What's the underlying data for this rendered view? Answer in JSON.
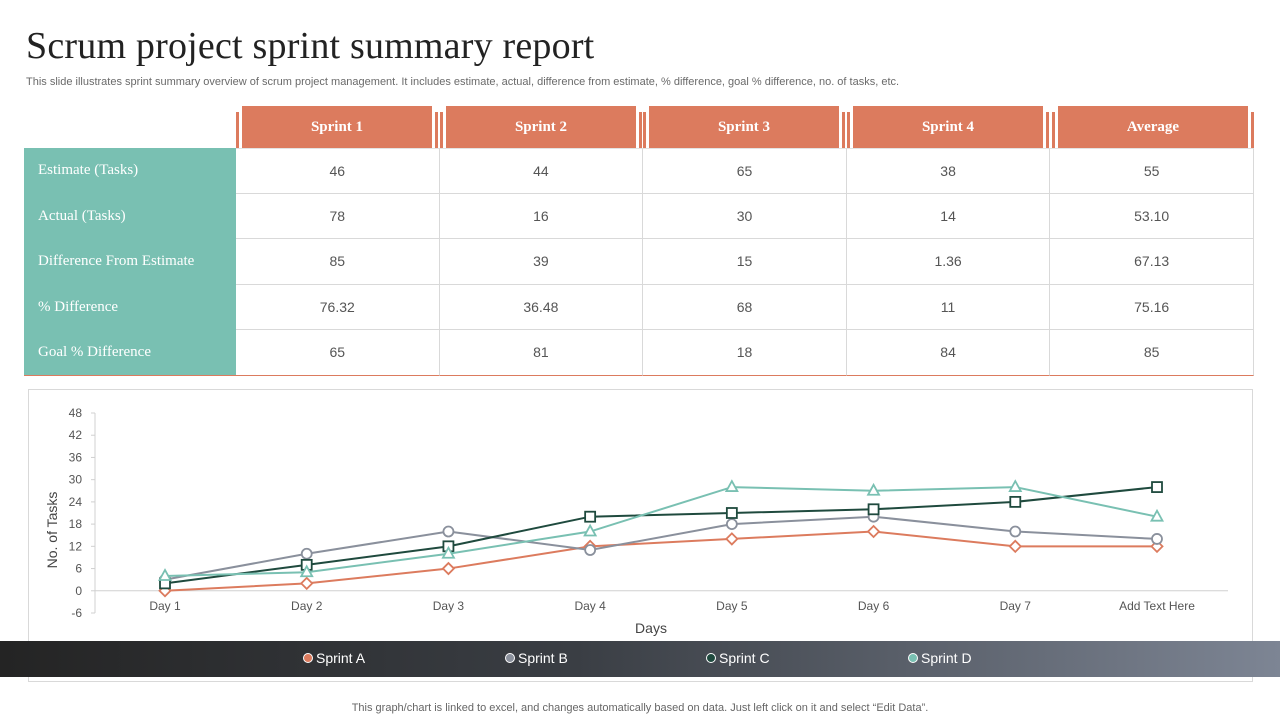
{
  "title": "Scrum project sprint summary report",
  "subtitle": "This slide illustrates sprint summary overview of scrum project management. It includes estimate, actual, difference from estimate, % difference, goal % difference, no. of tasks, etc.",
  "table": {
    "headers": [
      "Sprint 1",
      "Sprint 2",
      "Sprint 3",
      "Sprint 4",
      "Average"
    ],
    "rows": [
      {
        "label": "Estimate (Tasks)",
        "values": [
          "46",
          "44",
          "65",
          "38",
          "55"
        ]
      },
      {
        "label": "Actual (Tasks)",
        "values": [
          "78",
          "16",
          "30",
          "14",
          "53.10"
        ]
      },
      {
        "label": "Difference From Estimate",
        "values": [
          "85",
          "39",
          "15",
          "1.36",
          "67.13"
        ]
      },
      {
        "label": "% Difference",
        "values": [
          "76.32",
          "36.48",
          "68",
          "11",
          "75.16"
        ]
      },
      {
        "label": "Goal % Difference",
        "values": [
          "65",
          "81",
          "18",
          "84",
          "85"
        ]
      }
    ]
  },
  "colors": {
    "header": "#dc7b5e",
    "row_label": "#79c0b2",
    "sprint_a": "#dc7b5e",
    "sprint_b": "#8a909c",
    "sprint_c": "#1f4a3e",
    "sprint_d": "#79c0b2"
  },
  "chart_data": {
    "type": "line",
    "title": "",
    "xlabel": "Days",
    "ylabel": "No. of Tasks",
    "categories": [
      "Day 1",
      "Day 2",
      "Day 3",
      "Day 4",
      "Day 5",
      "Day 6",
      "Day 7",
      "Add Text Here"
    ],
    "ylim": [
      -6,
      48
    ],
    "yticks": [
      "48",
      "42",
      "36",
      "30",
      "24",
      "18",
      "12",
      "6",
      "0",
      "-6"
    ],
    "grid": false,
    "legend_position": "bottom",
    "series": [
      {
        "name": "Sprint A",
        "marker": "diamond",
        "color": "#dc7b5e",
        "values": [
          0,
          2,
          6,
          12,
          14,
          16,
          12,
          12
        ]
      },
      {
        "name": "Sprint B",
        "marker": "circle",
        "color": "#8a909c",
        "values": [
          3,
          10,
          16,
          11,
          18,
          20,
          16,
          14
        ]
      },
      {
        "name": "Sprint C",
        "marker": "square",
        "color": "#1f4a3e",
        "values": [
          2,
          7,
          12,
          20,
          21,
          22,
          24,
          28
        ]
      },
      {
        "name": "Sprint D",
        "marker": "triangle",
        "color": "#79c0b2",
        "values": [
          4,
          5,
          10,
          16,
          28,
          27,
          28,
          20
        ]
      }
    ]
  },
  "footer": "This graph/chart is linked to excel,  and changes automatically based on data. Just left click on it and select “Edit Data”."
}
